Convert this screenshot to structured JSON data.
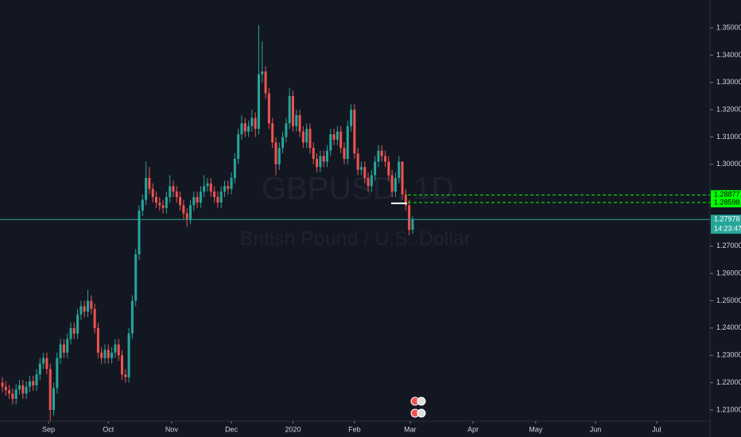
{
  "chart_data": {
    "type": "candlestick",
    "title": "GBPUSD, 1D",
    "subtitle": "British Pound / U.S. Dollar",
    "up_color": "#26a69a",
    "down_color": "#ef5350",
    "open": [
      1.22,
      1.2185,
      1.2172,
      1.216,
      1.214,
      1.2175,
      1.219,
      1.216,
      1.2185,
      1.2205,
      1.219,
      1.223,
      1.227,
      1.229,
      1.225,
      1.21,
      1.218,
      1.229,
      1.234,
      1.231,
      1.236,
      1.24,
      1.238,
      1.245,
      1.248,
      1.246,
      1.25,
      1.247,
      1.24,
      1.231,
      1.229,
      1.232,
      1.229,
      1.231,
      1.234,
      1.23,
      1.223,
      1.222,
      1.238,
      1.25,
      1.267,
      1.283,
      1.287,
      1.295,
      1.291,
      1.288,
      1.286,
      1.285,
      1.284,
      1.288,
      1.292,
      1.29,
      1.288,
      1.285,
      1.282,
      1.28,
      1.285,
      1.288,
      1.286,
      1.29,
      1.292,
      1.293,
      1.29,
      1.288,
      1.286,
      1.29,
      1.292,
      1.291,
      1.295,
      1.302,
      1.311,
      1.315,
      1.312,
      1.314,
      1.317,
      1.313,
      1.333,
      1.334,
      1.326,
      1.315,
      1.308,
      1.3,
      1.306,
      1.31,
      1.315,
      1.325,
      1.314,
      1.318,
      1.312,
      1.308,
      1.313,
      1.306,
      1.302,
      1.299,
      1.303,
      1.301,
      1.305,
      1.311,
      1.309,
      1.312,
      1.306,
      1.302,
      1.314,
      1.32,
      1.304,
      1.298,
      1.299,
      1.295,
      1.292,
      1.296,
      1.301,
      1.305,
      1.303,
      1.301,
      1.296,
      1.29,
      1.295,
      1.301,
      1.289,
      1.285,
      1.276
    ],
    "high": [
      1.222,
      1.2205,
      1.2192,
      1.218,
      1.2195,
      1.221,
      1.221,
      1.2205,
      1.2225,
      1.2225,
      1.225,
      1.229,
      1.231,
      1.231,
      1.227,
      1.22,
      1.231,
      1.236,
      1.236,
      1.238,
      1.242,
      1.242,
      1.247,
      1.25,
      1.25,
      1.254,
      1.252,
      1.249,
      1.242,
      1.233,
      1.234,
      1.234,
      1.233,
      1.236,
      1.236,
      1.232,
      1.225,
      1.24,
      1.252,
      1.269,
      1.285,
      1.289,
      1.301,
      1.299,
      1.293,
      1.29,
      1.288,
      1.287,
      1.29,
      1.296,
      1.294,
      1.292,
      1.29,
      1.287,
      1.284,
      1.287,
      1.29,
      1.29,
      1.292,
      1.296,
      1.295,
      1.295,
      1.292,
      1.29,
      1.292,
      1.294,
      1.294,
      1.297,
      1.304,
      1.313,
      1.318,
      1.317,
      1.316,
      1.32,
      1.319,
      1.351,
      1.345,
      1.336,
      1.328,
      1.317,
      1.31,
      1.308,
      1.312,
      1.317,
      1.328,
      1.327,
      1.32,
      1.32,
      1.314,
      1.315,
      1.315,
      1.308,
      1.304,
      1.305,
      1.305,
      1.307,
      1.313,
      1.313,
      1.314,
      1.314,
      1.308,
      1.316,
      1.322,
      1.322,
      1.306,
      1.301,
      1.301,
      1.297,
      1.298,
      1.303,
      1.307,
      1.307,
      1.305,
      1.303,
      1.298,
      1.297,
      1.303,
      1.301,
      1.291,
      1.287,
      1.281
    ],
    "low": [
      1.2165,
      1.2152,
      1.214,
      1.212,
      1.212,
      1.2155,
      1.214,
      1.214,
      1.2165,
      1.217,
      1.217,
      1.221,
      1.225,
      1.223,
      1.206,
      1.208,
      1.216,
      1.227,
      1.229,
      1.229,
      1.234,
      1.236,
      1.236,
      1.243,
      1.244,
      1.244,
      1.245,
      1.238,
      1.229,
      1.227,
      1.227,
      1.227,
      1.227,
      1.229,
      1.228,
      1.221,
      1.22,
      1.22,
      1.236,
      1.248,
      1.265,
      1.281,
      1.285,
      1.289,
      1.286,
      1.284,
      1.283,
      1.282,
      1.282,
      1.286,
      1.288,
      1.286,
      1.283,
      1.28,
      1.277,
      1.278,
      1.283,
      1.284,
      1.284,
      1.288,
      1.29,
      1.288,
      1.286,
      1.284,
      1.284,
      1.288,
      1.289,
      1.289,
      1.293,
      1.3,
      1.309,
      1.31,
      1.31,
      1.312,
      1.31,
      1.311,
      1.33,
      1.324,
      1.313,
      1.306,
      1.296,
      1.298,
      1.304,
      1.308,
      1.313,
      1.312,
      1.312,
      1.31,
      1.306,
      1.306,
      1.304,
      1.3,
      1.297,
      1.297,
      1.299,
      1.299,
      1.303,
      1.307,
      1.307,
      1.304,
      1.3,
      1.3,
      1.312,
      1.302,
      1.296,
      1.296,
      1.293,
      1.29,
      1.29,
      1.294,
      1.299,
      1.301,
      1.299,
      1.294,
      1.288,
      1.288,
      1.293,
      1.287,
      1.283,
      1.274,
      1.2745
    ],
    "close": [
      1.2185,
      1.2172,
      1.216,
      1.214,
      1.2175,
      1.219,
      1.216,
      1.2185,
      1.2205,
      1.219,
      1.223,
      1.227,
      1.229,
      1.225,
      1.21,
      1.218,
      1.229,
      1.234,
      1.231,
      1.236,
      1.24,
      1.238,
      1.245,
      1.248,
      1.246,
      1.25,
      1.247,
      1.24,
      1.231,
      1.229,
      1.232,
      1.229,
      1.231,
      1.234,
      1.23,
      1.223,
      1.222,
      1.238,
      1.25,
      1.267,
      1.283,
      1.287,
      1.295,
      1.291,
      1.288,
      1.286,
      1.285,
      1.284,
      1.288,
      1.292,
      1.29,
      1.288,
      1.285,
      1.282,
      1.28,
      1.285,
      1.288,
      1.286,
      1.29,
      1.292,
      1.293,
      1.29,
      1.288,
      1.286,
      1.29,
      1.292,
      1.291,
      1.295,
      1.302,
      1.311,
      1.315,
      1.312,
      1.314,
      1.317,
      1.313,
      1.333,
      1.334,
      1.326,
      1.315,
      1.308,
      1.3,
      1.306,
      1.31,
      1.315,
      1.325,
      1.314,
      1.318,
      1.312,
      1.308,
      1.313,
      1.306,
      1.302,
      1.299,
      1.303,
      1.301,
      1.305,
      1.311,
      1.309,
      1.312,
      1.306,
      1.302,
      1.314,
      1.32,
      1.304,
      1.298,
      1.299,
      1.295,
      1.292,
      1.296,
      1.301,
      1.305,
      1.303,
      1.301,
      1.296,
      1.29,
      1.295,
      1.301,
      1.289,
      1.285,
      1.276,
      1.2798
    ],
    "xlim": [
      -0.7,
      207
    ],
    "xticks": [
      {
        "value": 13.5,
        "label": "Sep"
      },
      {
        "value": 31,
        "label": "Oct"
      },
      {
        "value": 49.5,
        "label": "Nov"
      },
      {
        "value": 67,
        "label": "Dec"
      },
      {
        "value": 85,
        "label": "2020"
      },
      {
        "value": 103,
        "label": "Feb"
      },
      {
        "value": 119.3,
        "label": "Mar"
      },
      {
        "value": 137.7,
        "label": "Apr"
      },
      {
        "value": 156,
        "label": "May"
      },
      {
        "value": 173.5,
        "label": "Jun"
      },
      {
        "value": 191.4,
        "label": "Jul"
      }
    ],
    "ylim": [
      1.2059,
      1.3602
    ],
    "yticks": [
      {
        "value": 1.35,
        "label": "1.35000"
      },
      {
        "value": 1.34,
        "label": "1.34000"
      },
      {
        "value": 1.33,
        "label": "1.33000"
      },
      {
        "value": 1.32,
        "label": "1.32000"
      },
      {
        "value": 1.31,
        "label": "1.31000"
      },
      {
        "value": 1.3,
        "label": "1.30000"
      },
      {
        "value": 1.27,
        "label": "1.27000"
      },
      {
        "value": 1.26,
        "label": "1.26000"
      },
      {
        "value": 1.25,
        "label": "1.25000"
      },
      {
        "value": 1.24,
        "label": "1.24000"
      },
      {
        "value": 1.23,
        "label": "1.23000"
      },
      {
        "value": 1.22,
        "label": "1.22000"
      },
      {
        "value": 1.21,
        "label": "1.21000"
      }
    ],
    "levels": [
      {
        "value": 1.28877,
        "color": "#00ff00"
      },
      {
        "value": 1.28598,
        "color": "#00ff00"
      }
    ],
    "level_marker": 1.2857,
    "last_price": {
      "value": 1.27978,
      "color": "#26a69a",
      "countdown": "14:23:47"
    }
  }
}
